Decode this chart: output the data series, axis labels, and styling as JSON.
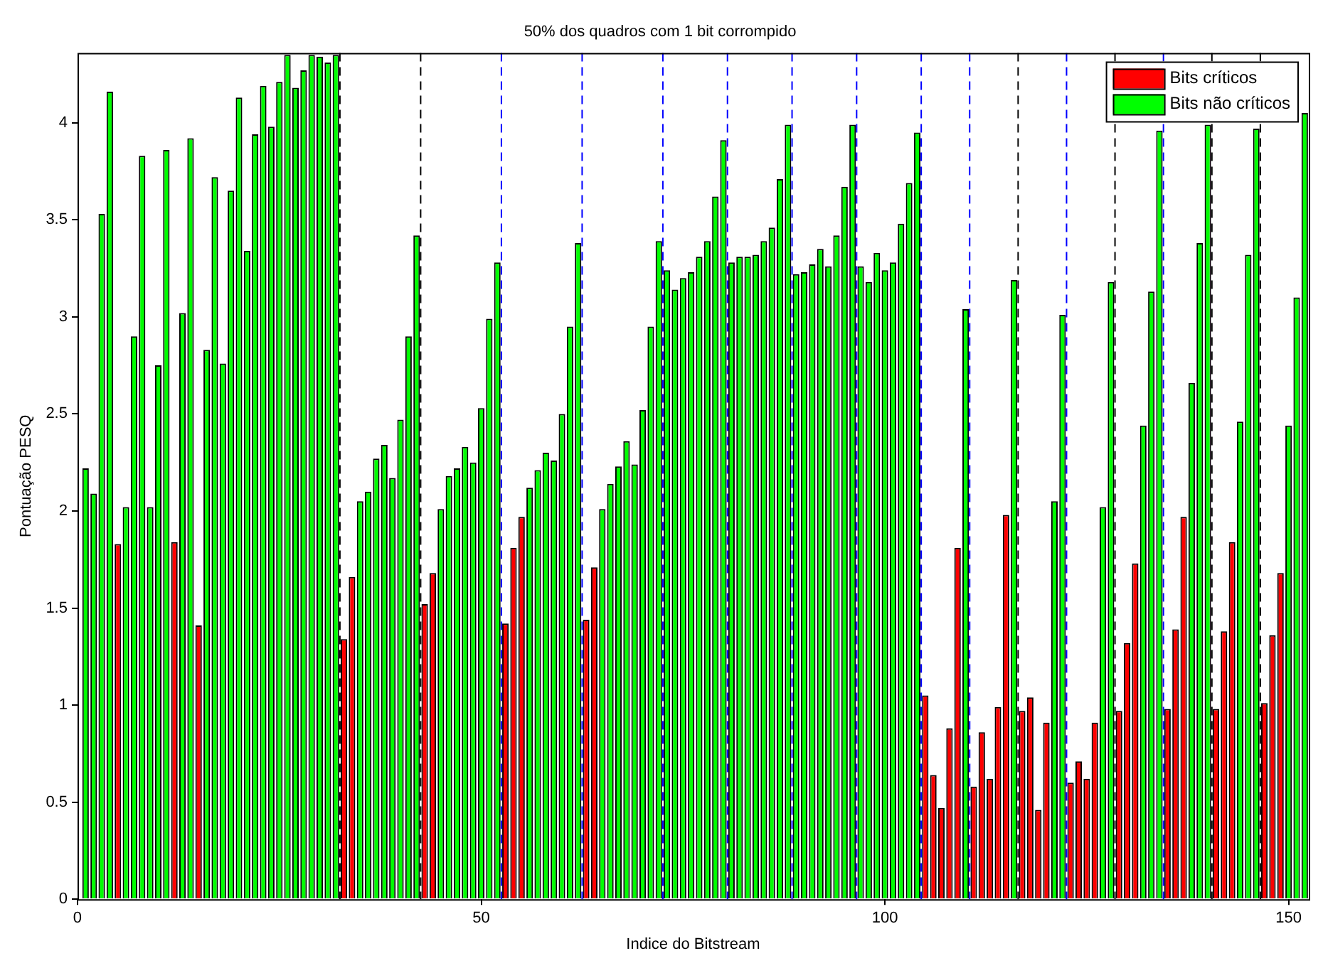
{
  "chart_data": {
    "type": "bar",
    "title": "50% dos quadros com 1 bit corrompido",
    "xlabel": "Indice do Bitstream",
    "ylabel": "Pontuação PESQ",
    "x": [
      1,
      2,
      3,
      4,
      5,
      6,
      7,
      8,
      9,
      10,
      11,
      12,
      13,
      14,
      15,
      16,
      17,
      18,
      19,
      20,
      21,
      22,
      23,
      24,
      25,
      26,
      27,
      28,
      29,
      30,
      31,
      32,
      33,
      34,
      35,
      36,
      37,
      38,
      39,
      40,
      41,
      42,
      43,
      44,
      45,
      46,
      47,
      48,
      49,
      50,
      51,
      52,
      53,
      54,
      55,
      56,
      57,
      58,
      59,
      60,
      61,
      62,
      63,
      64,
      65,
      66,
      67,
      68,
      69,
      70,
      71,
      72,
      73,
      74,
      75,
      76,
      77,
      78,
      79,
      80,
      81,
      82,
      83,
      84,
      85,
      86,
      87,
      88,
      89,
      90,
      91,
      92,
      93,
      94,
      95,
      96,
      97,
      98,
      99,
      100,
      101,
      102,
      103,
      104,
      105,
      106,
      107,
      108,
      109,
      110,
      111,
      112,
      113,
      114,
      115,
      116,
      117,
      118,
      119,
      120,
      121,
      122,
      123,
      124,
      125,
      126,
      127,
      128,
      129,
      130,
      131,
      132,
      133,
      134,
      135,
      136,
      137,
      138,
      139,
      140,
      141,
      142,
      143,
      144,
      145,
      146,
      147,
      148,
      149,
      150,
      151,
      152
    ],
    "series": [
      {
        "name": "Bits críticos",
        "color": "#ff0000",
        "values": [
          null,
          null,
          null,
          null,
          1.83,
          null,
          null,
          null,
          null,
          null,
          null,
          1.84,
          null,
          null,
          1.41,
          null,
          null,
          null,
          null,
          null,
          null,
          null,
          null,
          null,
          null,
          null,
          null,
          null,
          null,
          null,
          null,
          null,
          1.34,
          1.66,
          null,
          null,
          null,
          null,
          null,
          null,
          null,
          null,
          1.52,
          1.68,
          null,
          null,
          null,
          null,
          null,
          null,
          null,
          null,
          1.42,
          1.81,
          1.97,
          null,
          null,
          null,
          null,
          null,
          null,
          null,
          1.44,
          1.71,
          null,
          null,
          null,
          null,
          null,
          null,
          null,
          null,
          null,
          null,
          null,
          null,
          null,
          null,
          null,
          null,
          null,
          null,
          null,
          null,
          null,
          null,
          null,
          null,
          null,
          null,
          null,
          null,
          null,
          null,
          null,
          null,
          null,
          null,
          null,
          null,
          null,
          null,
          null,
          null,
          1.05,
          0.64,
          0.47,
          0.88,
          1.81,
          null,
          0.58,
          0.86,
          0.62,
          0.99,
          1.98,
          null,
          0.97,
          1.04,
          0.46,
          0.91,
          null,
          null,
          0.6,
          0.71,
          0.62,
          0.91,
          null,
          null,
          0.97,
          1.32,
          1.73,
          null,
          null,
          null,
          0.98,
          1.39,
          1.97,
          null,
          null,
          null,
          0.98,
          1.38,
          1.84,
          null,
          null,
          null,
          1.01,
          1.36,
          1.68,
          null,
          null,
          null
        ]
      },
      {
        "name": "Bits não críticos",
        "color": "#00ff00",
        "values": [
          2.22,
          2.09,
          3.53,
          4.16,
          null,
          2.02,
          2.9,
          3.83,
          2.02,
          2.75,
          3.86,
          null,
          3.02,
          3.92,
          null,
          2.83,
          3.72,
          2.76,
          3.65,
          4.13,
          3.34,
          3.94,
          4.19,
          3.98,
          4.21,
          4.35,
          4.18,
          4.27,
          4.35,
          4.34,
          4.31,
          4.35,
          null,
          null,
          2.05,
          2.1,
          2.27,
          2.34,
          2.17,
          2.47,
          2.9,
          3.42,
          null,
          null,
          2.01,
          2.18,
          2.22,
          2.33,
          2.25,
          2.53,
          2.99,
          3.28,
          null,
          null,
          null,
          2.12,
          2.21,
          2.3,
          2.26,
          2.5,
          2.95,
          3.38,
          null,
          null,
          2.01,
          2.14,
          2.23,
          2.36,
          2.24,
          2.52,
          2.95,
          3.39,
          3.24,
          3.14,
          3.2,
          3.23,
          3.31,
          3.39,
          3.62,
          3.91,
          3.28,
          3.31,
          3.31,
          3.32,
          3.39,
          3.46,
          3.71,
          3.99,
          3.22,
          3.23,
          3.27,
          3.35,
          3.26,
          3.42,
          3.67,
          3.99,
          3.26,
          3.18,
          3.33,
          3.24,
          3.28,
          3.48,
          3.69,
          3.95,
          null,
          null,
          null,
          null,
          null,
          3.04,
          null,
          null,
          null,
          null,
          null,
          3.19,
          null,
          null,
          null,
          null,
          2.05,
          3.01,
          null,
          null,
          null,
          null,
          2.02,
          3.18,
          null,
          null,
          null,
          2.44,
          3.13,
          3.96,
          null,
          null,
          null,
          2.66,
          3.38,
          3.99,
          null,
          null,
          null,
          2.46,
          3.32,
          3.97,
          null,
          null,
          null,
          2.44,
          3.1,
          4.05
        ]
      }
    ],
    "xlim": [
      0,
      152.5
    ],
    "xticks": [
      0,
      50,
      100,
      150
    ],
    "ylim": [
      0,
      4.36
    ],
    "yticks": [
      0,
      0.5,
      1,
      1.5,
      2,
      2.5,
      3,
      3.5,
      4
    ],
    "grid": false,
    "legend": "top right",
    "ref_lines": [
      {
        "axis": "x",
        "value": 32.5,
        "color": "#000000",
        "line_style": "dashed"
      },
      {
        "axis": "x",
        "value": 42.5,
        "color": "#000000",
        "line_style": "dashed"
      },
      {
        "axis": "x",
        "value": 52.5,
        "color": "#0000ff",
        "line_style": "dashed"
      },
      {
        "axis": "x",
        "value": 62.5,
        "color": "#0000ff",
        "line_style": "dashed"
      },
      {
        "axis": "x",
        "value": 72.5,
        "color": "#0000ff",
        "line_style": "dashed"
      },
      {
        "axis": "x",
        "value": 80.5,
        "color": "#0000ff",
        "line_style": "dashed"
      },
      {
        "axis": "x",
        "value": 88.5,
        "color": "#0000ff",
        "line_style": "dashed"
      },
      {
        "axis": "x",
        "value": 96.5,
        "color": "#0000ff",
        "line_style": "dashed"
      },
      {
        "axis": "x",
        "value": 104.5,
        "color": "#0000ff",
        "line_style": "dashed"
      },
      {
        "axis": "x",
        "value": 110.5,
        "color": "#0000ff",
        "line_style": "dashed"
      },
      {
        "axis": "x",
        "value": 116.5,
        "color": "#000000",
        "line_style": "dashed"
      },
      {
        "axis": "x",
        "value": 122.5,
        "color": "#0000ff",
        "line_style": "dashed"
      },
      {
        "axis": "x",
        "value": 128.5,
        "color": "#000000",
        "line_style": "dashed"
      },
      {
        "axis": "x",
        "value": 134.5,
        "color": "#0000ff",
        "line_style": "dashed"
      },
      {
        "axis": "x",
        "value": 140.5,
        "color": "#000000",
        "line_style": "dashed"
      },
      {
        "axis": "x",
        "value": 146.5,
        "color": "#000000",
        "line_style": "dashed"
      }
    ]
  }
}
